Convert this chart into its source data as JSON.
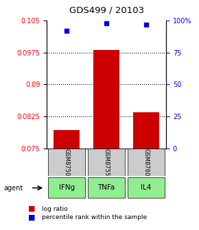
{
  "title": "GDS499 / 20103",
  "samples": [
    "GSM8750",
    "GSM8755",
    "GSM8760"
  ],
  "agents": [
    "IFNg",
    "TNFa",
    "IL4"
  ],
  "log_ratios": [
    0.0793,
    0.0982,
    0.0835
  ],
  "baseline": 0.075,
  "percentile_ranks": [
    92,
    98,
    97
  ],
  "ylim_left": [
    0.075,
    0.105
  ],
  "ylim_right": [
    0,
    100
  ],
  "yticks_left": [
    0.075,
    0.0825,
    0.09,
    0.0975,
    0.105
  ],
  "ytick_labels_left": [
    "0.075",
    "0.0825",
    "0.09",
    "0.0975",
    "0.105"
  ],
  "yticks_right": [
    0,
    25,
    50,
    75,
    100
  ],
  "ytick_labels_right": [
    "0",
    "25",
    "50",
    "75",
    "100%"
  ],
  "bar_color": "#cc0000",
  "dot_color": "#0000dd",
  "sample_box_color": "#cccccc",
  "agent_box_color": "#90ee90",
  "bar_width": 0.65,
  "legend_log_ratio_color": "#cc0000",
  "legend_percentile_color": "#0000dd"
}
